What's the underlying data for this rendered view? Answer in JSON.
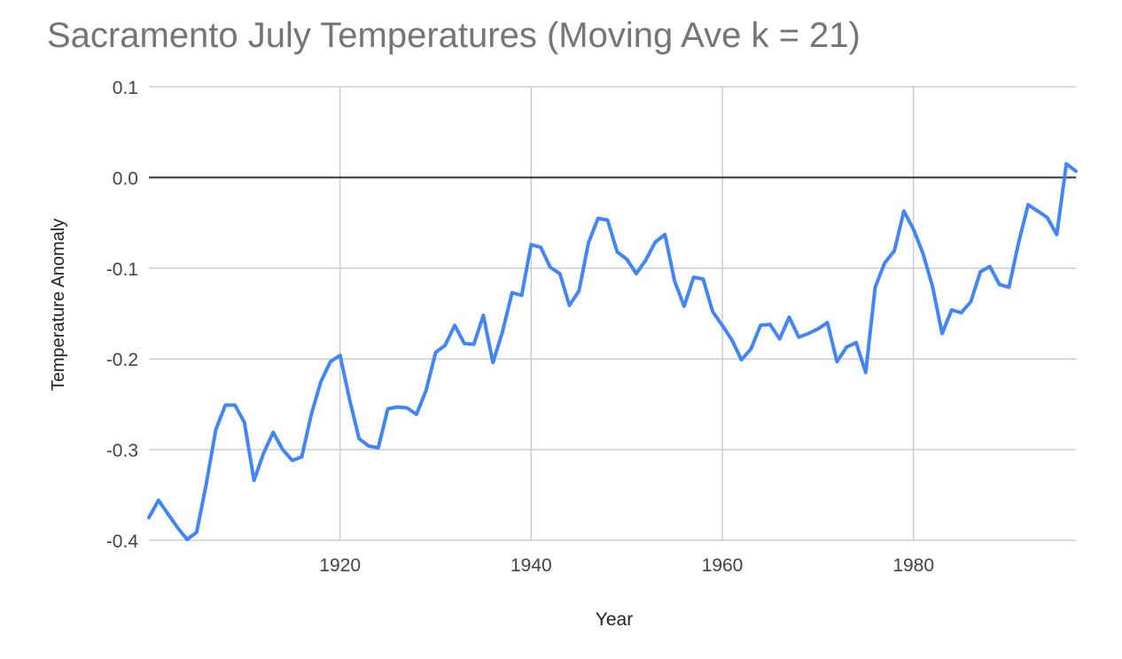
{
  "chart_data": {
    "type": "line",
    "title": "Sacramento July Temperatures (Moving Ave k = 21)",
    "xlabel": "Year",
    "ylabel": "Temperature Anomaly",
    "xlim": [
      1900,
      1997
    ],
    "ylim": [
      -0.4,
      0.1
    ],
    "xticks": [
      1920,
      1940,
      1960,
      1980
    ],
    "yticks": [
      0.1,
      0.0,
      -0.1,
      -0.2,
      -0.3,
      -0.4
    ],
    "ytick_labels": [
      "0.1",
      "0.0",
      "-0.1",
      "-0.2",
      "-0.3",
      "-0.4"
    ],
    "grid": true,
    "baseline": 0.0,
    "series": [
      {
        "color": "#4285f4",
        "x": [
          1900,
          1901,
          1902,
          1903,
          1904,
          1905,
          1906,
          1907,
          1908,
          1909,
          1910,
          1911,
          1912,
          1913,
          1914,
          1915,
          1916,
          1917,
          1918,
          1919,
          1920,
          1921,
          1922,
          1923,
          1924,
          1925,
          1926,
          1927,
          1928,
          1929,
          1930,
          1931,
          1932,
          1933,
          1934,
          1935,
          1936,
          1937,
          1938,
          1939,
          1940,
          1941,
          1942,
          1943,
          1944,
          1945,
          1946,
          1947,
          1948,
          1949,
          1950,
          1951,
          1952,
          1953,
          1954,
          1955,
          1956,
          1957,
          1958,
          1959,
          1960,
          1961,
          1962,
          1963,
          1964,
          1965,
          1966,
          1967,
          1968,
          1969,
          1970,
          1971,
          1972,
          1973,
          1974,
          1975,
          1976,
          1977,
          1978,
          1979,
          1980,
          1981,
          1982,
          1983,
          1984,
          1985,
          1986,
          1987,
          1988,
          1989,
          1990,
          1991,
          1992,
          1993,
          1994,
          1995,
          1996,
          1997
        ],
        "y": [
          -0.375,
          -0.356,
          -0.371,
          -0.386,
          -0.399,
          -0.391,
          -0.338,
          -0.278,
          -0.251,
          -0.251,
          -0.27,
          -0.334,
          -0.304,
          -0.281,
          -0.3,
          -0.312,
          -0.308,
          -0.261,
          -0.225,
          -0.203,
          -0.196,
          -0.245,
          -0.288,
          -0.296,
          -0.298,
          -0.255,
          -0.253,
          -0.254,
          -0.261,
          -0.235,
          -0.193,
          -0.185,
          -0.163,
          -0.183,
          -0.184,
          -0.152,
          -0.204,
          -0.17,
          -0.127,
          -0.13,
          -0.074,
          -0.077,
          -0.099,
          -0.106,
          -0.141,
          -0.125,
          -0.072,
          -0.045,
          -0.047,
          -0.082,
          -0.09,
          -0.106,
          -0.091,
          -0.071,
          -0.063,
          -0.114,
          -0.142,
          -0.11,
          -0.112,
          -0.148,
          -0.163,
          -0.179,
          -0.201,
          -0.189,
          -0.163,
          -0.162,
          -0.178,
          -0.154,
          -0.176,
          -0.172,
          -0.167,
          -0.16,
          -0.203,
          -0.187,
          -0.182,
          -0.215,
          -0.121,
          -0.094,
          -0.081,
          -0.037,
          -0.057,
          -0.084,
          -0.12,
          -0.172,
          -0.146,
          -0.149,
          -0.137,
          -0.104,
          -0.098,
          -0.118,
          -0.121,
          -0.072,
          -0.03,
          -0.037,
          -0.044,
          -0.063,
          0.015,
          0.007
        ]
      }
    ]
  }
}
